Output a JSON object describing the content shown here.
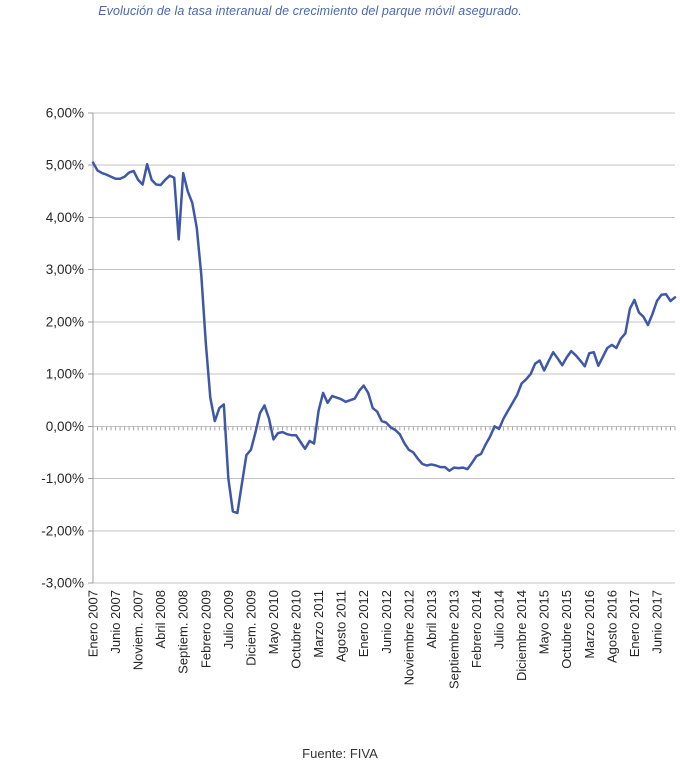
{
  "title": {
    "text": "Evolución de la tasa interanual de crecimiento del parque móvil asegurado.",
    "color": "#4a68ae"
  },
  "source": {
    "text": "Fuente: FIVA",
    "color": "#333333"
  },
  "chart_data": {
    "type": "line",
    "title": "Evolución de la tasa interanual de crecimiento del parque móvil asegurado.",
    "frequency": "monthly",
    "x_start_month": "Enero 2007",
    "x_end_month": "Octubre 2017",
    "unit": "percent",
    "values": [
      5.05,
      4.9,
      4.85,
      4.82,
      4.78,
      4.74,
      4.74,
      4.78,
      4.86,
      4.89,
      4.72,
      4.63,
      5.02,
      4.72,
      4.63,
      4.62,
      4.72,
      4.8,
      4.76,
      3.58,
      4.85,
      4.5,
      4.28,
      3.8,
      2.9,
      1.6,
      0.55,
      0.1,
      0.35,
      0.42,
      -1.0,
      -1.63,
      -1.66,
      -1.1,
      -0.55,
      -0.45,
      -0.12,
      0.25,
      0.4,
      0.15,
      -0.25,
      -0.13,
      -0.11,
      -0.15,
      -0.17,
      -0.17,
      -0.3,
      -0.43,
      -0.28,
      -0.33,
      0.3,
      0.64,
      0.45,
      0.58,
      0.55,
      0.52,
      0.47,
      0.5,
      0.53,
      0.68,
      0.78,
      0.64,
      0.35,
      0.28,
      0.1,
      0.07,
      -0.02,
      -0.07,
      -0.15,
      -0.32,
      -0.45,
      -0.5,
      -0.62,
      -0.72,
      -0.75,
      -0.73,
      -0.75,
      -0.78,
      -0.78,
      -0.85,
      -0.79,
      -0.8,
      -0.79,
      -0.82,
      -0.7,
      -0.57,
      -0.53,
      -0.35,
      -0.2,
      0.0,
      -0.05,
      0.15,
      0.3,
      0.45,
      0.6,
      0.82,
      0.9,
      1.0,
      1.2,
      1.26,
      1.07,
      1.25,
      1.42,
      1.3,
      1.17,
      1.32,
      1.44,
      1.36,
      1.26,
      1.15,
      1.4,
      1.42,
      1.16,
      1.33,
      1.5,
      1.56,
      1.5,
      1.68,
      1.78,
      2.25,
      2.42,
      2.18,
      2.1,
      1.94,
      2.15,
      2.4,
      2.52,
      2.53,
      2.4,
      2.47
    ],
    "x_tick_interval_months": 5,
    "x_tick_labels": [
      "Enero 2007",
      "Junio 2007",
      "Noviem. 2007",
      "Abril 2008",
      "Septiem. 2008",
      "Febrero 2009",
      "Julio 2009",
      "Diciem. 2009",
      "Mayo 2010",
      "Octubre 2010",
      "Marzo 2011",
      "Agosto 2011",
      "Enero 2012",
      "Junio 2012",
      "Noviembre 2012",
      "Abril 2013",
      "Septiembre 2013",
      "Febrero 2014",
      "Julio 2014",
      "Diciembre 2014",
      "Mayo 2015",
      "Octubre 2015",
      "Marzo 2016",
      "Agosto 2016",
      "Enero 2017",
      "Junio 2017"
    ],
    "y_ticks": [
      {
        "value": 6,
        "label": "6,00%"
      },
      {
        "value": 5,
        "label": "5,00%"
      },
      {
        "value": 4,
        "label": "4,00%"
      },
      {
        "value": 3,
        "label": "3,00%"
      },
      {
        "value": 2,
        "label": "2,00%"
      },
      {
        "value": 1,
        "label": "1,00%"
      },
      {
        "value": 0,
        "label": "0,00%"
      },
      {
        "value": -1,
        "label": "-1,00%"
      },
      {
        "value": -2,
        "label": "-2,00%"
      },
      {
        "value": -3,
        "label": "-3,00%"
      }
    ],
    "ylim": [
      -3,
      6
    ],
    "grid": "horizontal",
    "legend": "none",
    "zero_axis_has_month_ticks": true,
    "series_color": "#3f57a7",
    "gridline_color": "#c3c3c3",
    "axis_color": "#9e9e9e",
    "zero_tick_color": "#a6a6a6",
    "tick_label_color": "#262626"
  }
}
